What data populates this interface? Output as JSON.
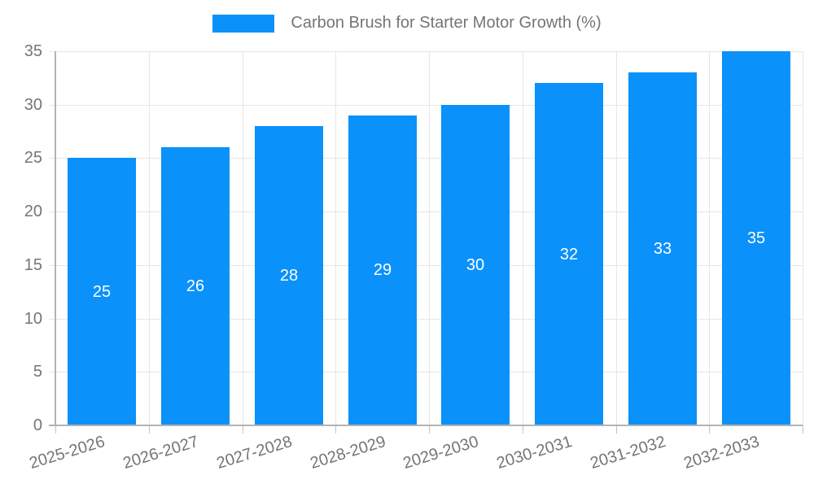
{
  "legend": {
    "label": "Carbon Brush for Starter Motor Growth (%)"
  },
  "chart_data": {
    "type": "bar",
    "title": "Carbon Brush for Starter Motor Growth (%)",
    "series_name": "Carbon Brush for Starter Motor Growth (%)",
    "categories": [
      "2025-2026",
      "2026-2027",
      "2027-2028",
      "2028-2029",
      "2029-2030",
      "2030-2031",
      "2031-2032",
      "2032-2033"
    ],
    "values": [
      25,
      26,
      28,
      29,
      30,
      32,
      33,
      35
    ],
    "xlabel": "",
    "ylabel": "",
    "ylim": [
      0,
      35
    ],
    "yticks": [
      0,
      5,
      10,
      15,
      20,
      25,
      30,
      35
    ],
    "grid": true,
    "legend_position": "top",
    "bar_color": "#0A91FA",
    "value_label_color": "#ffffff",
    "axis_text_color": "#757575",
    "gridline_color": "#e6e6e6",
    "axis_line_color": "#b3b3b3"
  }
}
